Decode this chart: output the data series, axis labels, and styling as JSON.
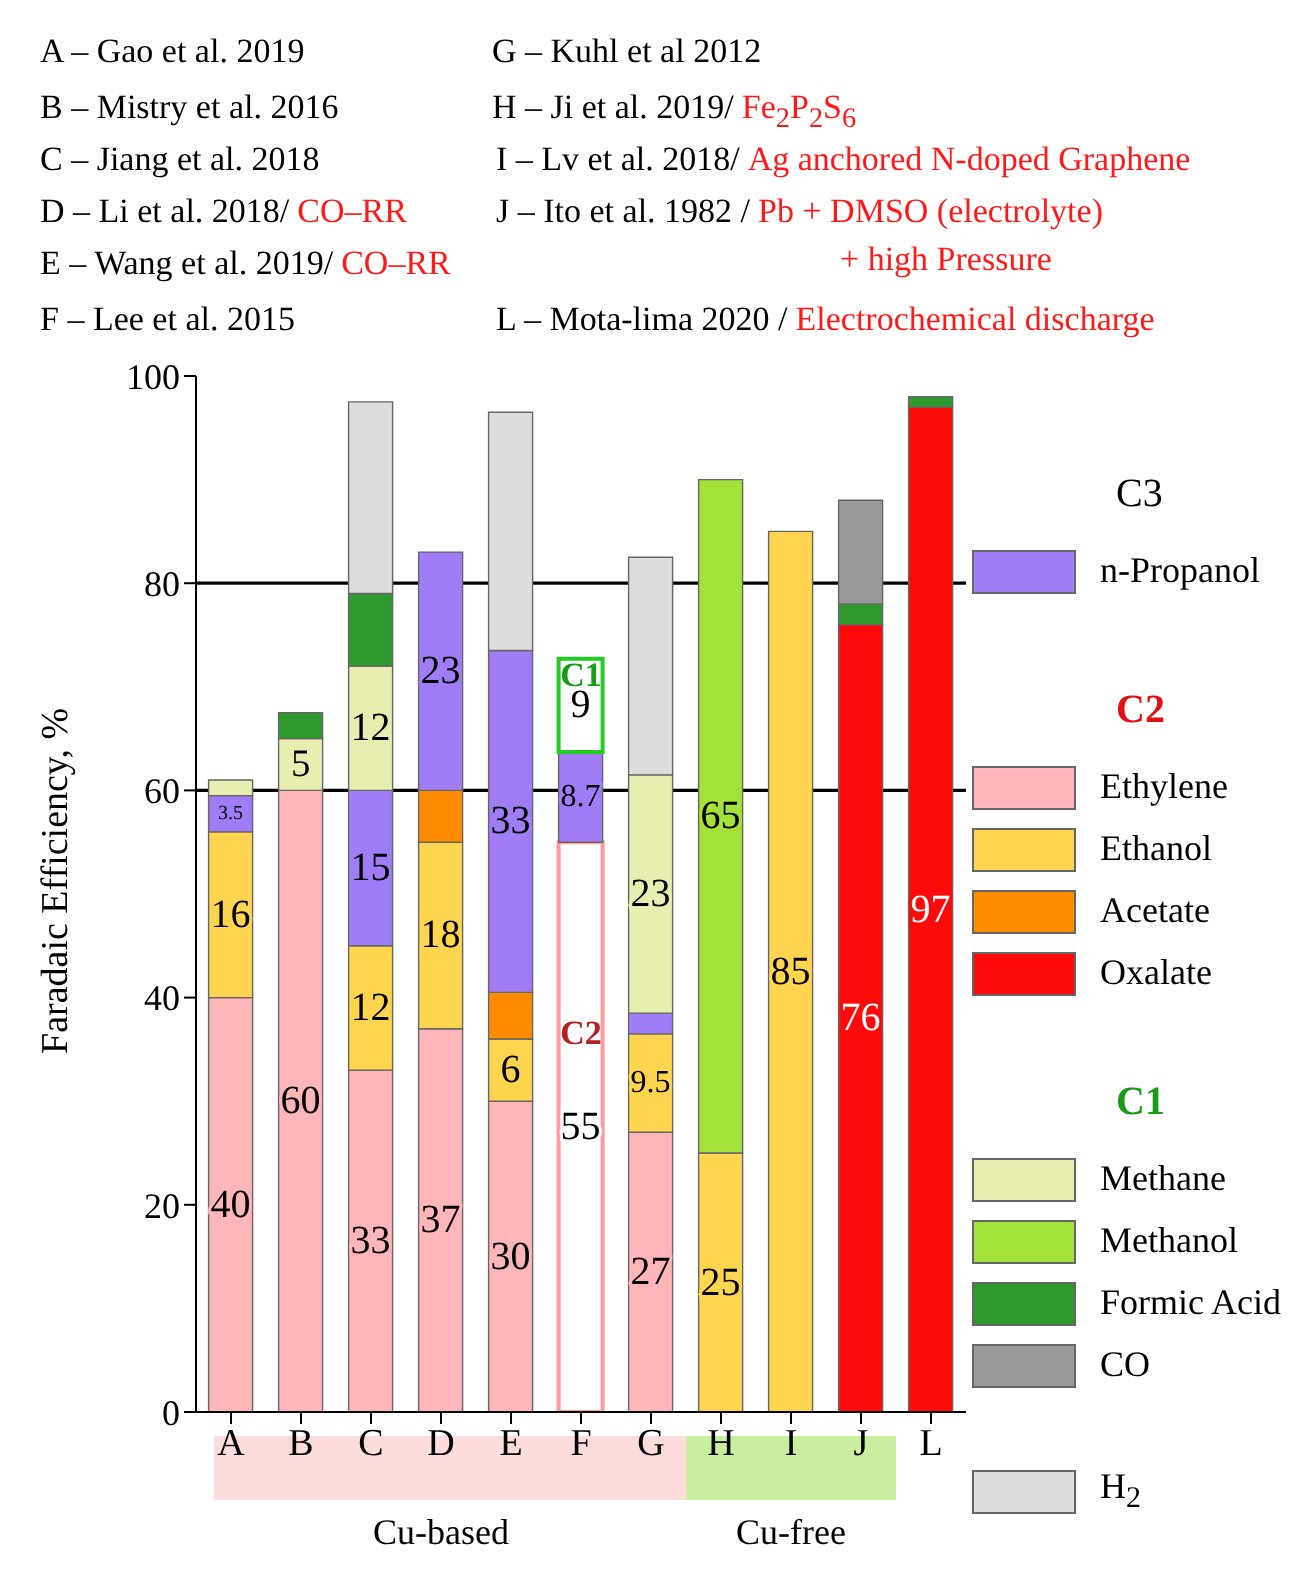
{
  "chart_data": {
    "type": "bar",
    "stacked": true,
    "ylabel": "Faradaic Efficiency, %",
    "legend": "right",
    "categories": [
      "A",
      "B",
      "C",
      "D",
      "E",
      "F",
      "G",
      "H",
      "I",
      "J",
      "L"
    ],
    "ylim": [
      0,
      100
    ],
    "yticks": [
      0,
      20,
      40,
      60,
      80,
      100
    ],
    "ref_lines": [
      {
        "axis": "y",
        "value": 60,
        "color": "#000000"
      },
      {
        "axis": "y",
        "value": 80,
        "color": "#000000"
      }
    ],
    "series": [
      {
        "name": "Ethylene",
        "color": "#ffb6b9",
        "values": [
          40,
          60,
          33,
          37,
          30,
          null,
          27,
          null,
          null,
          null,
          null
        ],
        "value_labels": [
          "40",
          "60",
          "33",
          "37",
          "30",
          null,
          "27",
          null,
          null,
          null,
          null
        ]
      },
      {
        "color": "#ff9a9a",
        "values": [
          null,
          null,
          null,
          null,
          null,
          55,
          null,
          null,
          null,
          null,
          null
        ],
        "value_labels": [
          null,
          null,
          null,
          null,
          null,
          "55",
          null,
          null,
          null,
          null,
          null
        ]
      },
      {
        "name": "Ethanol",
        "color": "#ffd54f",
        "values": [
          16,
          null,
          12,
          18,
          6,
          null,
          9.5,
          25,
          85,
          null,
          null
        ],
        "value_labels": [
          "16",
          null,
          "12",
          "18",
          "6",
          null,
          "9.5",
          "25",
          "85",
          null,
          null
        ]
      },
      {
        "name": "Acetate",
        "color": "#ff8c00",
        "values": [
          null,
          null,
          null,
          5,
          4.5,
          null,
          null,
          null,
          null,
          null,
          null
        ]
      },
      {
        "name": "Oxalate",
        "color": "#ff0a0a",
        "values": [
          null,
          null,
          null,
          null,
          null,
          null,
          null,
          null,
          null,
          76,
          97
        ],
        "value_labels": [
          null,
          null,
          null,
          null,
          null,
          null,
          null,
          null,
          null,
          "76",
          "97"
        ]
      },
      {
        "name": "n-Propanol",
        "color": "#a07cf7",
        "values": [
          3.5,
          null,
          15,
          23,
          33,
          8.7,
          2,
          null,
          null,
          null,
          null
        ],
        "value_labels": [
          "3.5",
          null,
          "15",
          "23",
          "33",
          "8.7",
          null,
          null,
          null,
          null,
          null
        ]
      },
      {
        "color": "#22cc22",
        "values": [
          null,
          null,
          null,
          null,
          null,
          9,
          null,
          null,
          null,
          null,
          null
        ],
        "value_labels": [
          null,
          null,
          null,
          null,
          null,
          "9",
          null,
          null,
          null,
          null,
          null
        ]
      },
      {
        "name": "Methane",
        "color": "#e8eeb0",
        "values": [
          1.5,
          5,
          12,
          null,
          null,
          null,
          23,
          null,
          null,
          null,
          null
        ],
        "value_labels": [
          null,
          "5",
          "12",
          null,
          null,
          null,
          "23",
          null,
          null,
          null,
          null
        ]
      },
      {
        "name": "Methanol",
        "color": "#a2e23a",
        "values": [
          null,
          null,
          null,
          null,
          null,
          null,
          null,
          65,
          null,
          null,
          null
        ],
        "value_labels": [
          null,
          null,
          null,
          null,
          null,
          null,
          null,
          "65",
          null,
          null,
          null
        ]
      },
      {
        "name": "Formic Acid",
        "color": "#2e9a2e",
        "values": [
          null,
          2.5,
          7,
          null,
          null,
          null,
          null,
          null,
          null,
          2,
          1
        ]
      },
      {
        "name": "CO",
        "color": "#999999",
        "values": [
          null,
          null,
          null,
          null,
          null,
          null,
          null,
          null,
          null,
          10,
          null
        ]
      },
      {
        "name": "H$_{2}$",
        "color": "#dddddd",
        "values": [
          null,
          null,
          18.5,
          null,
          23,
          null,
          21,
          null,
          null,
          null,
          null
        ]
      }
    ],
    "annotations": [
      "A – Gao et al. 2019",
      "B – Mistry et al. 2016",
      "C – Jiang et al. 2018",
      "D – Li et al. 2018/",
      "CO–RR",
      "E – Wang et al. 2019/",
      "CO–RR",
      "F – Lee et al. 2015",
      "G – Kuhl et al 2012",
      "H – Ji et al. 2019/",
      "Fe$_{2}$P$_{2}$S$_{6}$",
      "I – Lv et al. 2018/",
      "Ag anchored N-doped Graphene",
      "J – Ito et al. 1982 /",
      "Pb + DMSO (electrolyte)",
      "+ high Pressure",
      "L – Mota-lima 2020 /",
      "Electrochemical discharge",
      "C2",
      "C1",
      "Cu-based",
      "Cu-free",
      "C3",
      "C2",
      "C1"
    ]
  }
}
